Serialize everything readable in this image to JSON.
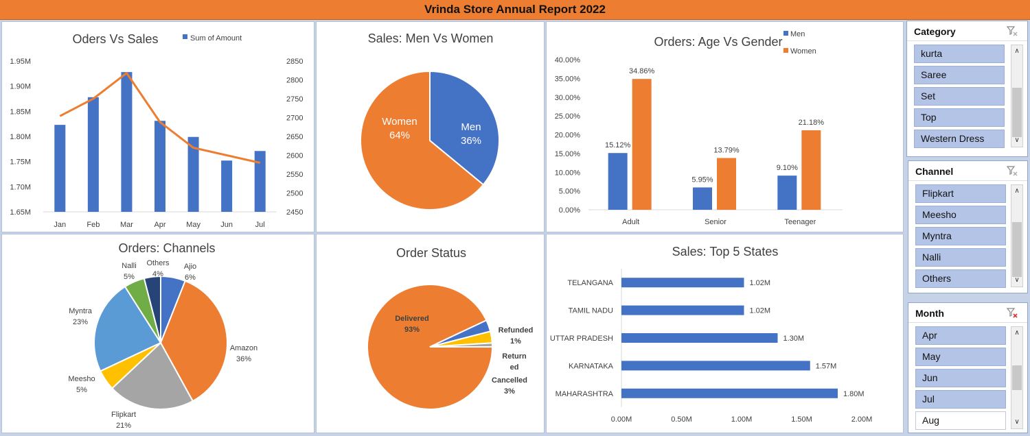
{
  "title": "Vrinda Store Annual Report 2022",
  "colors": {
    "blue": "#4472c4",
    "orange": "#ed7d31",
    "gray": "#a5a5a5",
    "yellow": "#ffc000",
    "lightblue": "#5b9bd5",
    "green": "#70ad47",
    "navy": "#264478"
  },
  "chart_data": [
    {
      "id": "orders-vs-sales",
      "type": "bar",
      "title": "Oders Vs Sales",
      "legend": "Sum of Amount",
      "categories": [
        "Jan",
        "Feb",
        "Mar",
        "Apr",
        "May",
        "Jun",
        "Jul"
      ],
      "bars": [
        1.823,
        1.878,
        1.928,
        1.831,
        1.799,
        1.752,
        1.771
      ],
      "line": [
        2704,
        2750,
        2818,
        2688,
        2620,
        2600,
        2580
      ],
      "ylim_left": [
        1.65,
        1.95
      ],
      "ylim_right": [
        2450,
        2850
      ],
      "left_ticks": [
        "1.65M",
        "1.70M",
        "1.75M",
        "1.80M",
        "1.85M",
        "1.90M",
        "1.95M"
      ],
      "right_ticks": [
        "2450",
        "2500",
        "2550",
        "2600",
        "2650",
        "2700",
        "2750",
        "2800",
        "2850"
      ]
    },
    {
      "id": "men-vs-women",
      "type": "pie",
      "title": "Sales: Men Vs Women",
      "slices": [
        {
          "name": "Men",
          "value": 36,
          "label": "36%"
        },
        {
          "name": "Women",
          "value": 64,
          "label": "64%"
        }
      ]
    },
    {
      "id": "age-vs-gender",
      "type": "bar",
      "title": "Orders: Age Vs Gender",
      "categories": [
        "Adult",
        "Senior",
        "Teenager"
      ],
      "series": [
        {
          "name": "Men",
          "values": [
            15.12,
            5.95,
            9.1
          ],
          "labels": [
            "15.12%",
            "5.95%",
            "9.10%"
          ]
        },
        {
          "name": "Women",
          "values": [
            34.86,
            13.79,
            21.18
          ],
          "labels": [
            "34.86%",
            "13.79%",
            "21.18%"
          ]
        }
      ],
      "ylim": [
        0,
        40
      ],
      "ticks": [
        "0.00%",
        "5.00%",
        "10.00%",
        "15.00%",
        "20.00%",
        "25.00%",
        "30.00%",
        "35.00%",
        "40.00%"
      ]
    },
    {
      "id": "channels",
      "type": "pie",
      "title": "Orders: Channels",
      "slices": [
        {
          "name": "Ajio",
          "value": 6,
          "label": "6%"
        },
        {
          "name": "Amazon",
          "value": 36,
          "label": "36%"
        },
        {
          "name": "Flipkart",
          "value": 21,
          "label": "21%"
        },
        {
          "name": "Meesho",
          "value": 5,
          "label": "5%"
        },
        {
          "name": "Myntra",
          "value": 23,
          "label": "23%"
        },
        {
          "name": "Nalli",
          "value": 5,
          "label": "5%"
        },
        {
          "name": "Others",
          "value": 4,
          "label": "4%"
        }
      ]
    },
    {
      "id": "order-status",
      "type": "pie",
      "title": "Order Status",
      "slices": [
        {
          "name": "Delivered",
          "value": 93,
          "label": "93%"
        },
        {
          "name": "Cancelled",
          "value": 3,
          "label": "3%"
        },
        {
          "name": "Returned",
          "display": [
            "Return",
            "ed"
          ],
          "value": 3,
          "label": ""
        },
        {
          "name": "Refunded",
          "value": 1,
          "label": "1%"
        }
      ]
    },
    {
      "id": "top-states",
      "type": "bar",
      "orientation": "horizontal",
      "title": "Sales: Top 5 States",
      "categories": [
        "TELANGANA",
        "TAMIL NADU",
        "UTTAR PRADESH",
        "KARNATAKA",
        "MAHARASHTRA"
      ],
      "values": [
        1.02,
        1.02,
        1.3,
        1.57,
        1.8
      ],
      "labels": [
        "1.02M",
        "1.02M",
        "1.30M",
        "1.57M",
        "1.80M"
      ],
      "xlim": [
        0,
        2
      ],
      "ticks": [
        "0.00M",
        "0.50M",
        "1.00M",
        "1.50M",
        "2.00M"
      ]
    }
  ],
  "slicers": [
    {
      "title": "Category",
      "items": [
        "kurta",
        "Saree",
        "Set",
        "Top",
        "Western Dress"
      ],
      "filtered": false
    },
    {
      "title": "Channel",
      "items": [
        "Flipkart",
        "Meesho",
        "Myntra",
        "Nalli",
        "Others"
      ],
      "filtered": false
    },
    {
      "title": "Month",
      "items": [
        "Apr",
        "May",
        "Jun",
        "Jul",
        "Aug"
      ],
      "unselected": [
        "Aug"
      ],
      "filtered": true
    }
  ]
}
